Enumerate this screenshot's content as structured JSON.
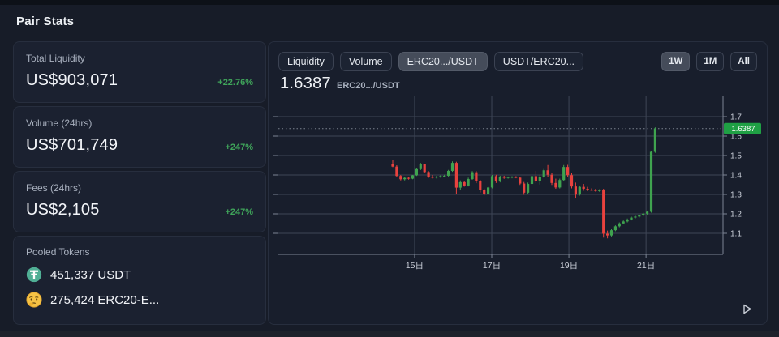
{
  "page": {
    "title": "Pair Stats"
  },
  "stats": [
    {
      "label": "Total Liquidity",
      "value": "US$903,071",
      "change": "+22.76%"
    },
    {
      "label": "Volume (24hrs)",
      "value": "US$701,749",
      "change": "+247%"
    },
    {
      "label": "Fees (24hrs)",
      "value": "US$2,105",
      "change": "+247%"
    }
  ],
  "pooled": {
    "label": "Pooled Tokens",
    "rows": [
      {
        "icon": "tether-icon",
        "text": "451,337 USDT"
      },
      {
        "icon": "thinking-face-icon",
        "text": "275,424 ERC20-E..."
      }
    ]
  },
  "chart_controls": {
    "series_tabs": [
      {
        "label": "Liquidity",
        "active": false
      },
      {
        "label": "Volume",
        "active": false
      },
      {
        "label": "ERC20.../USDT",
        "active": true
      },
      {
        "label": "USDT/ERC20...",
        "active": false
      }
    ],
    "range_tabs": [
      {
        "label": "1W",
        "active": true
      },
      {
        "label": "1M",
        "active": false
      },
      {
        "label": "All",
        "active": false
      }
    ]
  },
  "price": {
    "value": "1.6387",
    "pair": "ERC20.../USDT"
  },
  "chart_data": {
    "type": "candlestick",
    "title": "ERC20.../USDT price, 1W range",
    "current_price": 1.6387,
    "current_price_label": "1.6387",
    "ylim": [
      1.05,
      1.75
    ],
    "y_ticks": [
      1.1,
      1.2,
      1.3,
      1.4,
      1.5,
      1.6,
      1.7
    ],
    "x_axis": {
      "labels": [
        "15日",
        "17日",
        "19日",
        "21日"
      ],
      "tick_candle_index": [
        5.5,
        24.9,
        44.3,
        63.7
      ]
    },
    "legend_position": "none",
    "grid": true,
    "candles": [
      [
        1.455,
        1.475,
        1.44,
        1.443
      ],
      [
        1.443,
        1.45,
        1.388,
        1.395
      ],
      [
        1.395,
        1.4,
        1.372,
        1.378
      ],
      [
        1.378,
        1.39,
        1.372,
        1.385
      ],
      [
        1.385,
        1.39,
        1.376,
        1.381
      ],
      [
        1.381,
        1.4,
        1.378,
        1.398
      ],
      [
        1.398,
        1.435,
        1.395,
        1.43
      ],
      [
        1.43,
        1.462,
        1.425,
        1.455
      ],
      [
        1.455,
        1.458,
        1.41,
        1.415
      ],
      [
        1.415,
        1.42,
        1.385,
        1.39
      ],
      [
        1.39,
        1.4,
        1.382,
        1.387
      ],
      [
        1.387,
        1.395,
        1.382,
        1.391
      ],
      [
        1.391,
        1.398,
        1.386,
        1.394
      ],
      [
        1.394,
        1.401,
        1.388,
        1.396
      ],
      [
        1.396,
        1.426,
        1.392,
        1.421
      ],
      [
        1.421,
        1.47,
        1.416,
        1.462
      ],
      [
        1.462,
        1.468,
        1.3,
        1.335
      ],
      [
        1.335,
        1.372,
        1.325,
        1.363
      ],
      [
        1.363,
        1.37,
        1.34,
        1.346
      ],
      [
        1.346,
        1.386,
        1.341,
        1.379
      ],
      [
        1.379,
        1.42,
        1.375,
        1.414
      ],
      [
        1.414,
        1.42,
        1.358,
        1.369
      ],
      [
        1.369,
        1.375,
        1.31,
        1.321
      ],
      [
        1.321,
        1.33,
        1.295,
        1.304
      ],
      [
        1.304,
        1.341,
        1.299,
        1.336
      ],
      [
        1.336,
        1.4,
        1.331,
        1.394
      ],
      [
        1.394,
        1.401,
        1.359,
        1.367
      ],
      [
        1.367,
        1.396,
        1.362,
        1.39
      ],
      [
        1.39,
        1.396,
        1.38,
        1.386
      ],
      [
        1.386,
        1.392,
        1.381,
        1.389
      ],
      [
        1.389,
        1.394,
        1.383,
        1.391
      ],
      [
        1.391,
        1.394,
        1.383,
        1.386
      ],
      [
        1.386,
        1.391,
        1.349,
        1.356
      ],
      [
        1.356,
        1.364,
        1.298,
        1.309
      ],
      [
        1.309,
        1.361,
        1.304,
        1.354
      ],
      [
        1.354,
        1.401,
        1.349,
        1.394
      ],
      [
        1.394,
        1.421,
        1.359,
        1.369
      ],
      [
        1.369,
        1.401,
        1.351,
        1.391
      ],
      [
        1.391,
        1.431,
        1.386,
        1.424
      ],
      [
        1.424,
        1.451,
        1.391,
        1.401
      ],
      [
        1.401,
        1.411,
        1.349,
        1.359
      ],
      [
        1.359,
        1.381,
        1.329,
        1.336
      ],
      [
        1.336,
        1.381,
        1.331,
        1.374
      ],
      [
        1.374,
        1.451,
        1.369,
        1.441
      ],
      [
        1.441,
        1.452,
        1.391,
        1.399
      ],
      [
        1.399,
        1.409,
        1.331,
        1.341
      ],
      [
        1.341,
        1.361,
        1.279,
        1.299
      ],
      [
        1.299,
        1.346,
        1.294,
        1.339
      ],
      [
        1.339,
        1.354,
        1.319,
        1.329
      ],
      [
        1.329,
        1.339,
        1.317,
        1.324
      ],
      [
        1.324,
        1.331,
        1.318,
        1.322
      ],
      [
        1.322,
        1.329,
        1.314,
        1.319
      ],
      [
        1.319,
        1.327,
        1.313,
        1.321
      ],
      [
        1.321,
        1.329,
        1.078,
        1.098
      ],
      [
        1.098,
        1.114,
        1.074,
        1.089
      ],
      [
        1.089,
        1.121,
        1.084,
        1.116
      ],
      [
        1.116,
        1.141,
        1.111,
        1.136
      ],
      [
        1.136,
        1.156,
        1.131,
        1.151
      ],
      [
        1.151,
        1.166,
        1.146,
        1.161
      ],
      [
        1.161,
        1.176,
        1.156,
        1.171
      ],
      [
        1.171,
        1.186,
        1.166,
        1.181
      ],
      [
        1.181,
        1.191,
        1.176,
        1.186
      ],
      [
        1.186,
        1.196,
        1.181,
        1.192
      ],
      [
        1.192,
        1.206,
        1.187,
        1.201
      ],
      [
        1.201,
        1.216,
        1.196,
        1.211
      ],
      [
        1.211,
        1.525,
        1.206,
        1.519
      ],
      [
        1.519,
        1.645,
        1.514,
        1.639
      ]
    ],
    "colors": {
      "up": "#3fa34f",
      "down": "#e8423e",
      "grid": "#3e4656",
      "axis": "#7c8494",
      "tick_text": "#c9ced8",
      "price_line": "#7a828e",
      "badge_bg": "#1fa044"
    }
  },
  "colors": {
    "background": "#171c28",
    "card": "#1b2130",
    "border": "#272e3e",
    "positive": "#3fa45a",
    "tether_green": "#50af95"
  }
}
